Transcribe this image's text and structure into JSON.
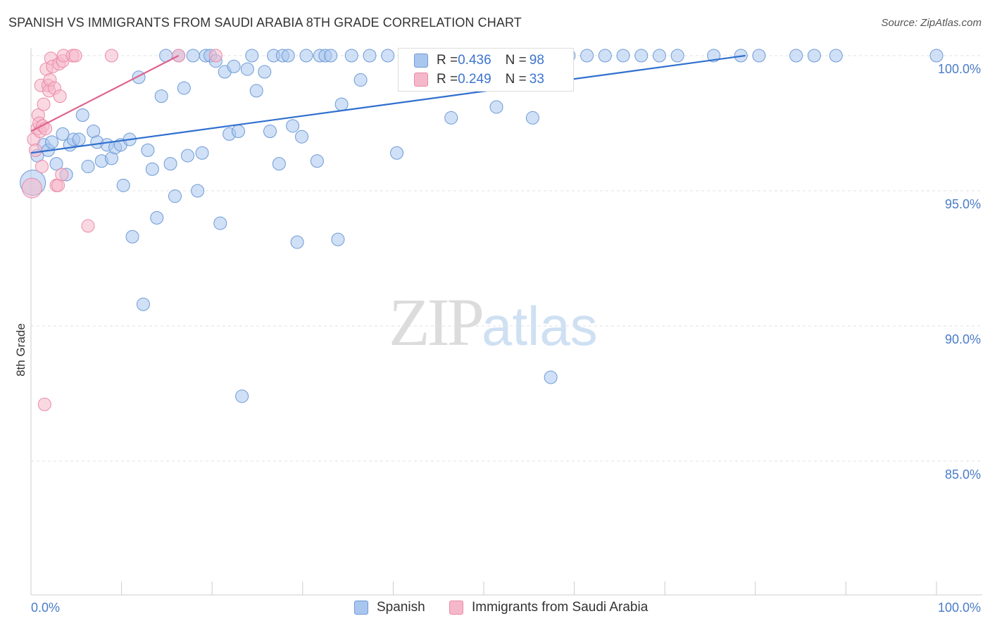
{
  "header": {
    "title": "SPANISH VS IMMIGRANTS FROM SAUDI ARABIA 8TH GRADE CORRELATION CHART",
    "source": "Source: ZipAtlas.com"
  },
  "watermark": {
    "zip": "ZIP",
    "atlas": "atlas"
  },
  "stats": {
    "row1": {
      "r_label": "R = ",
      "r_value": "0.436",
      "n_label": "N = ",
      "n_value": "98"
    },
    "row2": {
      "r_label": "R = ",
      "r_value": "0.249",
      "n_label": "N = ",
      "n_value": "33"
    }
  },
  "legend": {
    "spanish": "Spanish",
    "saudi": "Immigrants from Saudi Arabia"
  },
  "colors": {
    "spanish_fill": "#a9c6ee",
    "spanish_stroke": "#6e9ad6",
    "spanish_line": "#2f6fcf",
    "saudi_fill": "#f5b8cb",
    "saudi_stroke": "#e98aa8",
    "saudi_line": "#e0628b",
    "tick_text": "#4a7cc7",
    "grid": "#e2e2e2"
  },
  "chart_data": {
    "type": "scatter",
    "title": "SPANISH VS IMMIGRANTS FROM SAUDI ARABIA 8TH GRADE CORRELATION CHART",
    "xlabel": "",
    "ylabel": "8th Grade",
    "xlim": [
      0,
      100
    ],
    "ylim": [
      80.2,
      100.9
    ],
    "x_tick_labels": [
      {
        "value": 0,
        "label": "0.0%"
      },
      {
        "value": 100,
        "label": "100.0%"
      }
    ],
    "y_tick_labels": [
      {
        "value": 100,
        "label": "100.0%"
      },
      {
        "value": 95,
        "label": "95.0%"
      },
      {
        "value": 90,
        "label": "90.0%"
      },
      {
        "value": 85,
        "label": "85.0%"
      }
    ],
    "series": [
      {
        "name": "Spanish",
        "r": 0.436,
        "n": 98,
        "trend": {
          "x": [
            0,
            78.9
          ],
          "y": [
            96.4,
            100.0
          ]
        },
        "points": [
          [
            0.2,
            95.3,
            18
          ],
          [
            0.7,
            96.3,
            9
          ],
          [
            1.4,
            96.7,
            9
          ],
          [
            1.9,
            96.5,
            9
          ],
          [
            2.3,
            96.8,
            9
          ],
          [
            2.8,
            96.0,
            9
          ],
          [
            3.5,
            97.1,
            9
          ],
          [
            3.9,
            95.6,
            9
          ],
          [
            4.3,
            96.7,
            9
          ],
          [
            4.7,
            96.9,
            9
          ],
          [
            5.3,
            96.9,
            9
          ],
          [
            5.7,
            97.8,
            9
          ],
          [
            6.3,
            95.9,
            9
          ],
          [
            6.9,
            97.2,
            9
          ],
          [
            7.3,
            96.8,
            9
          ],
          [
            7.8,
            96.1,
            9
          ],
          [
            8.4,
            96.7,
            9
          ],
          [
            8.9,
            96.2,
            9
          ],
          [
            9.3,
            96.6,
            9
          ],
          [
            9.9,
            96.7,
            9
          ],
          [
            10.2,
            95.2,
            9
          ],
          [
            10.9,
            96.9,
            9
          ],
          [
            11.2,
            93.3,
            9
          ],
          [
            11.9,
            99.2,
            9
          ],
          [
            12.4,
            90.8,
            9
          ],
          [
            12.9,
            96.5,
            9
          ],
          [
            13.4,
            95.8,
            9
          ],
          [
            13.9,
            94.0,
            9
          ],
          [
            14.4,
            98.5,
            9
          ],
          [
            14.9,
            100.0,
            9
          ],
          [
            15.4,
            96.0,
            9
          ],
          [
            15.9,
            94.8,
            9
          ],
          [
            16.3,
            100.0,
            9
          ],
          [
            16.9,
            98.8,
            9
          ],
          [
            17.3,
            96.3,
            9
          ],
          [
            17.9,
            100.0,
            9
          ],
          [
            18.4,
            95.0,
            9
          ],
          [
            18.9,
            96.4,
            9
          ],
          [
            19.3,
            100.0,
            9
          ],
          [
            19.8,
            100.0,
            9
          ],
          [
            20.4,
            99.8,
            9
          ],
          [
            20.9,
            93.8,
            9
          ],
          [
            21.4,
            99.4,
            9
          ],
          [
            21.9,
            97.1,
            9
          ],
          [
            22.4,
            99.6,
            9
          ],
          [
            22.9,
            97.2,
            9
          ],
          [
            23.3,
            87.4,
            9
          ],
          [
            23.9,
            99.5,
            9
          ],
          [
            24.4,
            100.0,
            9
          ],
          [
            24.9,
            98.7,
            9
          ],
          [
            25.8,
            99.4,
            9
          ],
          [
            26.4,
            97.2,
            9
          ],
          [
            26.8,
            100.0,
            9
          ],
          [
            27.4,
            96.0,
            9
          ],
          [
            27.8,
            100.0,
            9
          ],
          [
            28.4,
            100.0,
            9
          ],
          [
            28.9,
            97.4,
            9
          ],
          [
            29.4,
            93.1,
            9
          ],
          [
            29.9,
            97.0,
            9
          ],
          [
            30.4,
            100.0,
            9
          ],
          [
            31.6,
            96.1,
            9
          ],
          [
            31.9,
            100.0,
            9
          ],
          [
            32.5,
            100.0,
            9
          ],
          [
            33.1,
            100.0,
            9
          ],
          [
            33.9,
            93.2,
            9
          ],
          [
            34.3,
            98.2,
            9
          ],
          [
            35.4,
            100.0,
            9
          ],
          [
            36.4,
            99.1,
            9
          ],
          [
            37.4,
            100.0,
            9
          ],
          [
            39.4,
            100.0,
            9
          ],
          [
            40.4,
            96.4,
            9
          ],
          [
            41.4,
            100.0,
            9
          ],
          [
            42.4,
            100.0,
            9
          ],
          [
            44.4,
            100.0,
            9
          ],
          [
            45.4,
            100.0,
            9
          ],
          [
            46.4,
            97.7,
            9
          ],
          [
            48.4,
            100.0,
            9
          ],
          [
            50.4,
            100.0,
            9
          ],
          [
            51.4,
            98.1,
            9
          ],
          [
            53.4,
            100.0,
            9
          ],
          [
            55.4,
            97.7,
            9
          ],
          [
            55.9,
            100.0,
            9
          ],
          [
            56.4,
            100.0,
            9
          ],
          [
            57.4,
            88.1,
            9
          ],
          [
            59.4,
            100.0,
            9
          ],
          [
            61.4,
            100.0,
            9
          ],
          [
            63.4,
            100.0,
            9
          ],
          [
            65.4,
            100.0,
            9
          ],
          [
            67.4,
            100.0,
            9
          ],
          [
            69.4,
            100.0,
            9
          ],
          [
            71.4,
            100.0,
            9
          ],
          [
            75.4,
            100.0,
            9
          ],
          [
            78.4,
            100.0,
            9
          ],
          [
            80.4,
            100.0,
            9
          ],
          [
            84.5,
            100.0,
            9
          ],
          [
            86.5,
            100.0,
            9
          ],
          [
            88.9,
            100.0,
            9
          ],
          [
            100.0,
            100.0,
            9
          ]
        ]
      },
      {
        "name": "Immigrants from Saudi Arabia",
        "r": 0.249,
        "n": 33,
        "trend": {
          "x": [
            0,
            16.3
          ],
          "y": [
            97.2,
            100.0
          ]
        },
        "points": [
          [
            0.1,
            95.1,
            14
          ],
          [
            0.3,
            96.9,
            9
          ],
          [
            0.5,
            96.5,
            9
          ],
          [
            0.7,
            97.3,
            9
          ],
          [
            0.8,
            97.8,
            9
          ],
          [
            0.9,
            97.5,
            9
          ],
          [
            1.0,
            97.2,
            9
          ],
          [
            1.1,
            98.9,
            9
          ],
          [
            1.2,
            95.9,
            9
          ],
          [
            1.3,
            97.4,
            9
          ],
          [
            1.4,
            98.2,
            9
          ],
          [
            1.5,
            87.1,
            9
          ],
          [
            1.6,
            97.3,
            9
          ],
          [
            1.7,
            99.5,
            9
          ],
          [
            1.9,
            98.9,
            9
          ],
          [
            2.0,
            98.7,
            9
          ],
          [
            2.1,
            99.1,
            9
          ],
          [
            2.2,
            99.9,
            9
          ],
          [
            2.4,
            99.6,
            9
          ],
          [
            2.6,
            98.8,
            9
          ],
          [
            2.8,
            95.2,
            9
          ],
          [
            3.0,
            95.2,
            9
          ],
          [
            3.1,
            99.7,
            9
          ],
          [
            3.2,
            98.5,
            9
          ],
          [
            3.4,
            95.6,
            9
          ],
          [
            3.5,
            99.8,
            9
          ],
          [
            3.6,
            100.0,
            9
          ],
          [
            4.6,
            100.0,
            9
          ],
          [
            4.9,
            100.0,
            9
          ],
          [
            6.3,
            93.7,
            9
          ],
          [
            8.9,
            100.0,
            9
          ],
          [
            16.3,
            100.0,
            9
          ],
          [
            20.4,
            100.0,
            9
          ]
        ]
      }
    ],
    "legend": [
      "Spanish",
      "Immigrants from Saudi Arabia"
    ],
    "grid": true
  }
}
